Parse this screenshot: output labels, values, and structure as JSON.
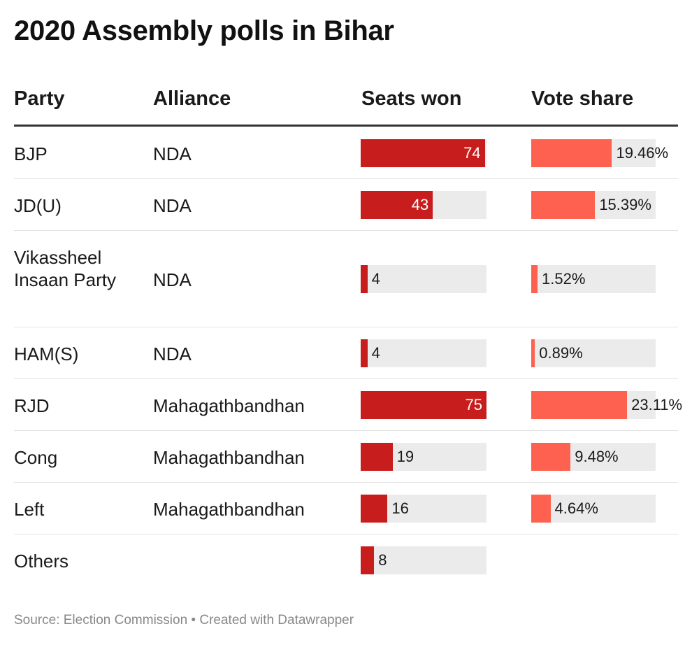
{
  "title": "2020 Assembly polls in Bihar",
  "headers": {
    "party": "Party",
    "alliance": "Alliance",
    "seats": "Seats won",
    "vote": "Vote share"
  },
  "chart_data": {
    "type": "table",
    "title": "2020 Assembly polls in Bihar",
    "columns": [
      "Party",
      "Alliance",
      "Seats won",
      "Vote share"
    ],
    "seats_max": 75,
    "vote_max": 23.11,
    "rows": [
      {
        "party": "BJP",
        "alliance": "NDA",
        "seats": 74,
        "vote": 19.46,
        "vote_label": "19.46%"
      },
      {
        "party": "JD(U)",
        "alliance": "NDA",
        "seats": 43,
        "vote": 15.39,
        "vote_label": "15.39%"
      },
      {
        "party": "Vikassheel Insaan Party",
        "alliance": "NDA",
        "seats": 4,
        "vote": 1.52,
        "vote_label": "1.52%"
      },
      {
        "party": "HAM(S)",
        "alliance": "NDA",
        "seats": 4,
        "vote": 0.89,
        "vote_label": "0.89%"
      },
      {
        "party": "RJD",
        "alliance": "Mahagathbandhan",
        "seats": 75,
        "vote": 23.11,
        "vote_label": "23.11%"
      },
      {
        "party": "Cong",
        "alliance": "Mahagathbandhan",
        "seats": 19,
        "vote": 9.48,
        "vote_label": "9.48%"
      },
      {
        "party": "Left",
        "alliance": "Mahagathbandhan",
        "seats": 16,
        "vote": 4.64,
        "vote_label": "4.64%"
      },
      {
        "party": "Others",
        "alliance": "",
        "seats": 8,
        "vote": null,
        "vote_label": ""
      }
    ]
  },
  "source": "Source: Election Commission • Created with Datawrapper"
}
